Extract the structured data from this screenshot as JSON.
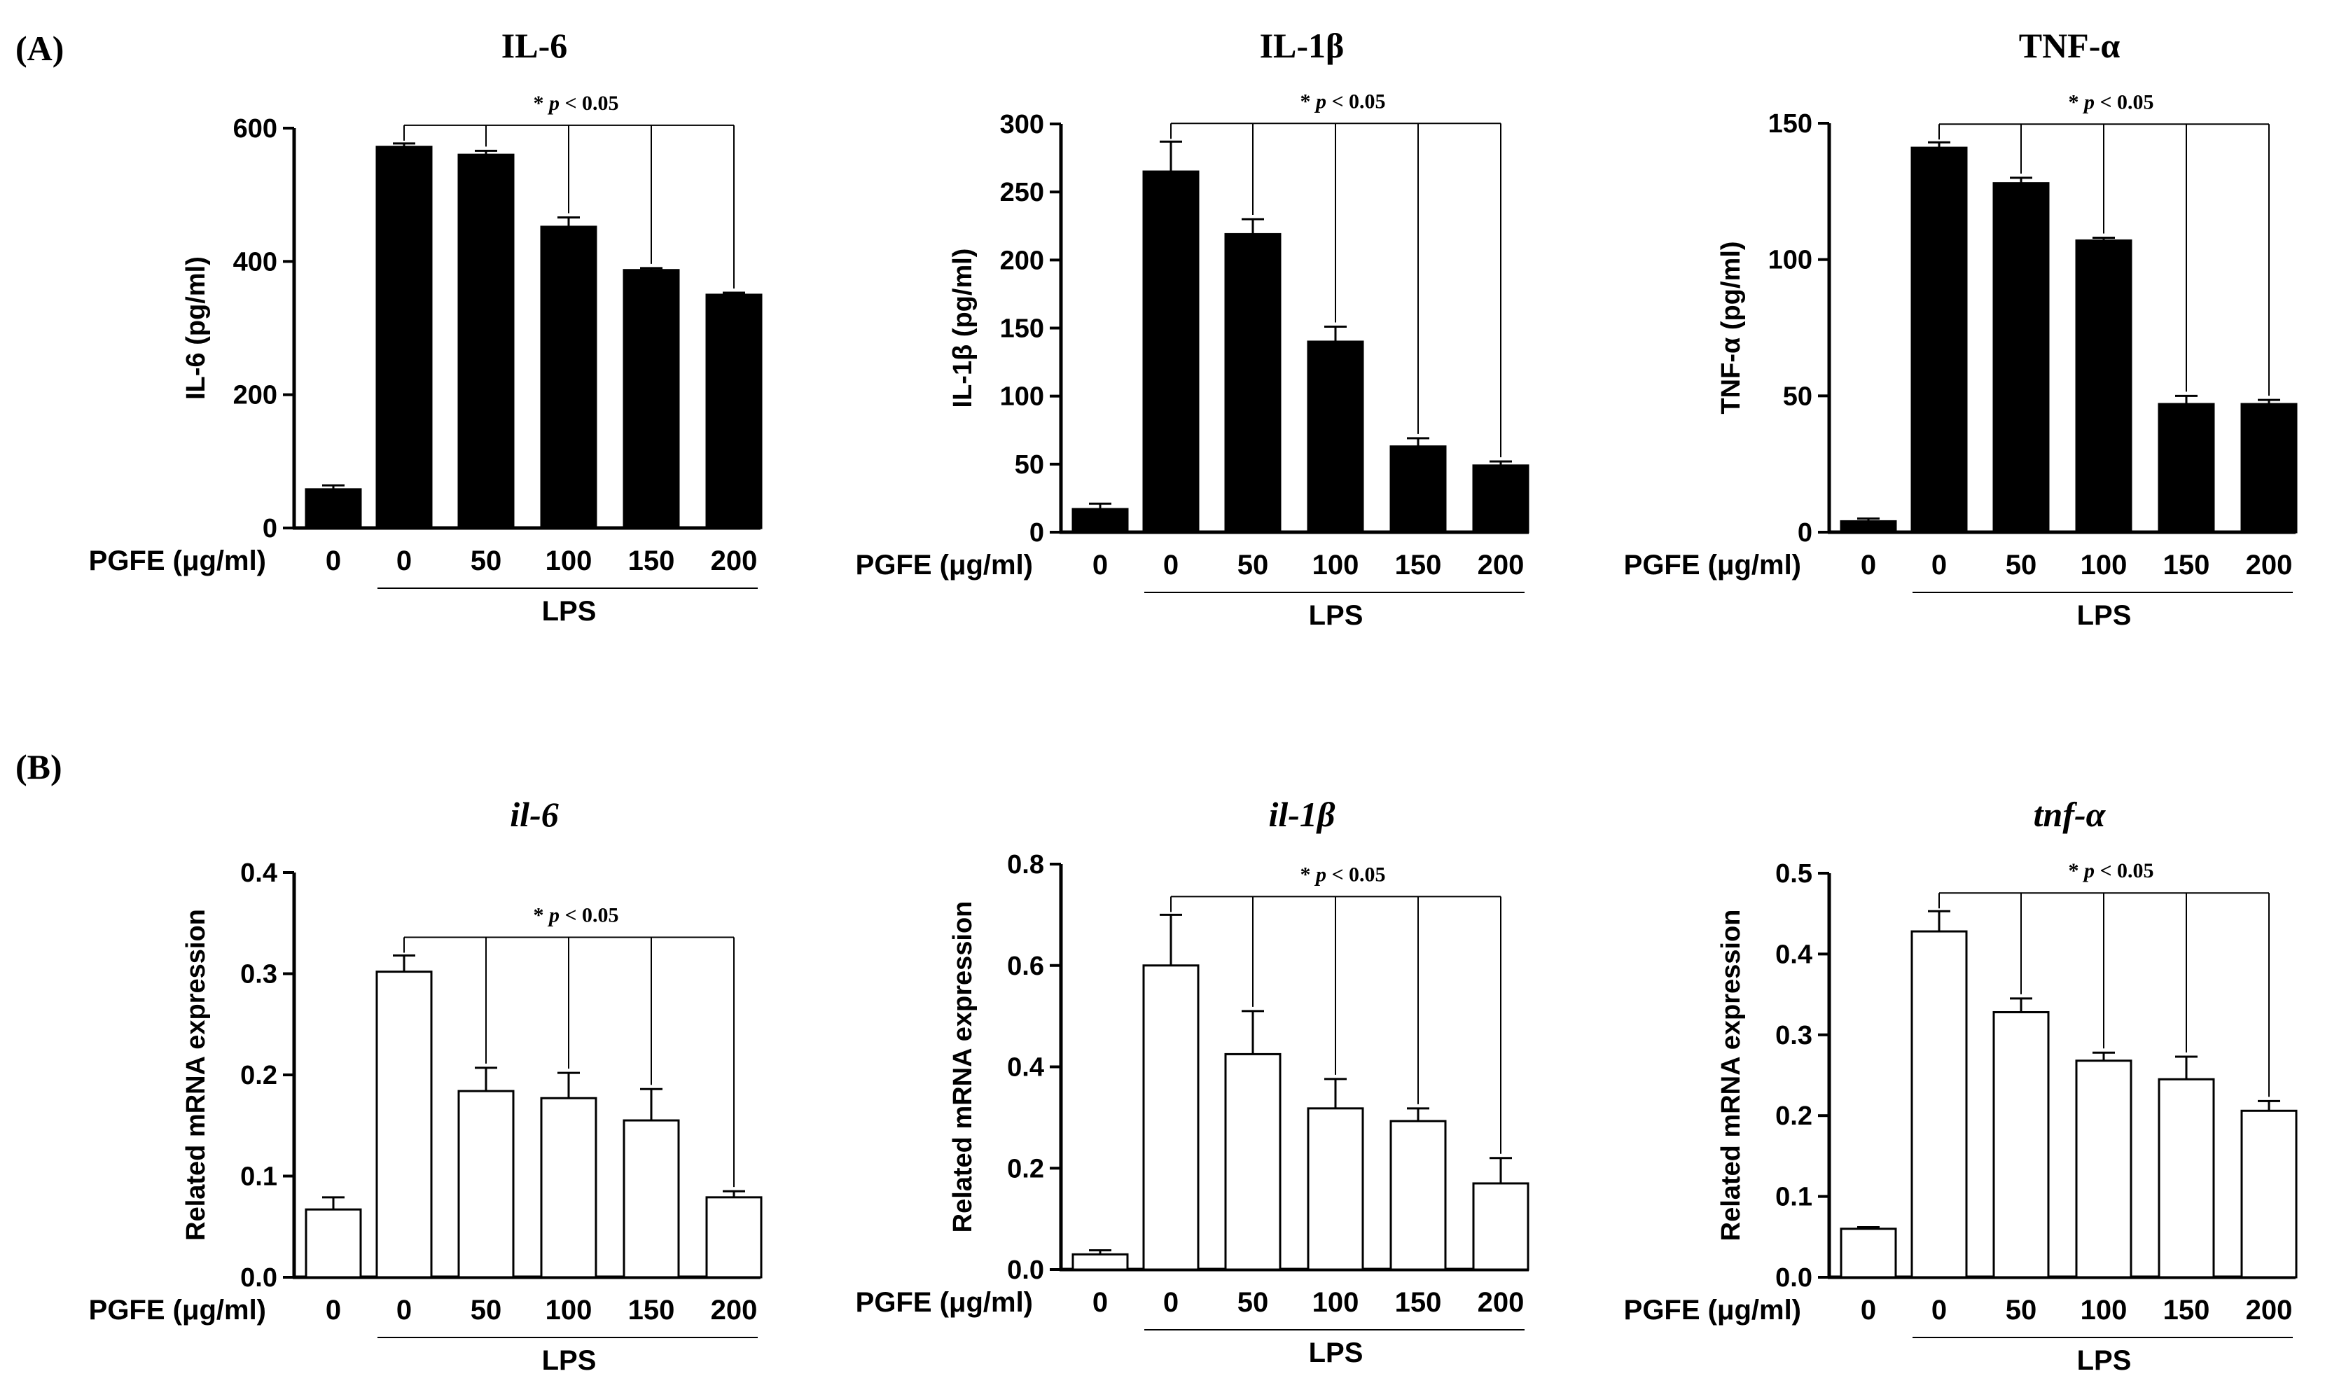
{
  "panels": [
    {
      "label": "(A)"
    },
    {
      "label": "(B)"
    }
  ],
  "chart_data": [
    {
      "type": "bar",
      "panel": "(A)",
      "title": "IL-6",
      "title_italic": false,
      "ylabel": "IL-6 (pg/ml)",
      "xlabel": "PGFE (μg/ml)",
      "group_label": "LPS",
      "categories": [
        "0",
        "0",
        "50",
        "100",
        "150",
        "200"
      ],
      "values": [
        58,
        572,
        560,
        452,
        387,
        350
      ],
      "errors": [
        6,
        5,
        6,
        14,
        3,
        3
      ],
      "ylim": [
        0,
        600
      ],
      "yticks": [
        0,
        200,
        400,
        600
      ],
      "ytick_labels": [
        "0",
        "200",
        "400",
        "600"
      ],
      "bar_fill": "#000000",
      "significance": "* p < 0.05",
      "significance_prefix": "* ",
      "significance_p": "p",
      "significance_rest": " < 0.05"
    },
    {
      "type": "bar",
      "panel": "(A)",
      "title": "IL-1β",
      "title_italic": false,
      "ylabel": "IL-1β (pg/ml)",
      "xlabel": "PGFE (μg/ml)",
      "group_label": "LPS",
      "categories": [
        "0",
        "0",
        "50",
        "100",
        "150",
        "200"
      ],
      "values": [
        17,
        265,
        219,
        140,
        63,
        49
      ],
      "errors": [
        4,
        22,
        11,
        11,
        6,
        3
      ],
      "ylim": [
        0,
        300
      ],
      "yticks": [
        0,
        50,
        100,
        150,
        200,
        250,
        300
      ],
      "ytick_labels": [
        "0",
        "50",
        "100",
        "150",
        "200",
        "250",
        "300"
      ],
      "bar_fill": "#000000",
      "significance": "* p < 0.05",
      "significance_prefix": "* ",
      "significance_p": "p",
      "significance_rest": " < 0.05"
    },
    {
      "type": "bar",
      "panel": "(A)",
      "title": "TNF-α",
      "title_italic": false,
      "ylabel": "TNF-α (pg/ml)",
      "xlabel": "PGFE (μg/ml)",
      "group_label": "LPS",
      "categories": [
        "0",
        "0",
        "50",
        "100",
        "150",
        "200"
      ],
      "values": [
        4,
        141,
        128,
        107,
        47,
        47
      ],
      "errors": [
        1,
        2,
        2,
        1,
        3,
        1.5
      ],
      "ylim": [
        0,
        150
      ],
      "yticks": [
        0,
        50,
        100,
        150
      ],
      "ytick_labels": [
        "0",
        "50",
        "100",
        "150"
      ],
      "bar_fill": "#000000",
      "significance": "* p < 0.05",
      "significance_prefix": "* ",
      "significance_p": "p",
      "significance_rest": " < 0.05"
    },
    {
      "type": "bar",
      "panel": "(B)",
      "title": "il-6",
      "title_italic": true,
      "ylabel": "Related mRNA expression",
      "xlabel": "PGFE (μg/ml)",
      "group_label": "LPS",
      "categories": [
        "0",
        "0",
        "50",
        "100",
        "150",
        "200"
      ],
      "values": [
        0.067,
        0.302,
        0.184,
        0.177,
        0.155,
        0.079
      ],
      "errors": [
        0.012,
        0.016,
        0.023,
        0.025,
        0.031,
        0.006
      ],
      "ylim": [
        0,
        0.4
      ],
      "yticks": [
        0,
        0.1,
        0.2,
        0.3,
        0.4
      ],
      "ytick_labels": [
        "0.0",
        "0.1",
        "0.2",
        "0.3",
        "0.4"
      ],
      "bar_fill": "#ffffff",
      "significance": "* p < 0.05",
      "significance_prefix": "* ",
      "significance_p": "p",
      "significance_rest": " < 0.05"
    },
    {
      "type": "bar",
      "panel": "(B)",
      "title": "il-1β",
      "title_italic": true,
      "ylabel": "Related mRNA expression",
      "xlabel": "PGFE (μg/ml)",
      "group_label": "LPS",
      "categories": [
        "0",
        "0",
        "50",
        "100",
        "150",
        "200"
      ],
      "values": [
        0.03,
        0.6,
        0.425,
        0.318,
        0.293,
        0.17
      ],
      "errors": [
        0.008,
        0.1,
        0.085,
        0.058,
        0.025,
        0.05
      ],
      "ylim": [
        0,
        0.8
      ],
      "yticks": [
        0,
        0.2,
        0.4,
        0.6,
        0.8
      ],
      "ytick_labels": [
        "0.0",
        "0.2",
        "0.4",
        "0.6",
        "0.8"
      ],
      "bar_fill": "#ffffff",
      "significance": "* p < 0.05",
      "significance_prefix": "* ",
      "significance_p": "p",
      "significance_rest": " < 0.05"
    },
    {
      "type": "bar",
      "panel": "(B)",
      "title": "tnf-α",
      "title_italic": true,
      "ylabel": "Related mRNA expression",
      "xlabel": "PGFE (μg/ml)",
      "group_label": "LPS",
      "categories": [
        "0",
        "0",
        "50",
        "100",
        "150",
        "200"
      ],
      "values": [
        0.06,
        0.428,
        0.328,
        0.268,
        0.245,
        0.206
      ],
      "errors": [
        0.002,
        0.025,
        0.017,
        0.01,
        0.028,
        0.012
      ],
      "ylim": [
        0,
        0.5
      ],
      "yticks": [
        0,
        0.1,
        0.2,
        0.3,
        0.4,
        0.5
      ],
      "ytick_labels": [
        "0.0",
        "0.1",
        "0.2",
        "0.3",
        "0.4",
        "0.5"
      ],
      "bar_fill": "#ffffff",
      "significance": "* p < 0.05",
      "significance_prefix": "* ",
      "significance_p": "p",
      "significance_rest": " < 0.05"
    }
  ]
}
